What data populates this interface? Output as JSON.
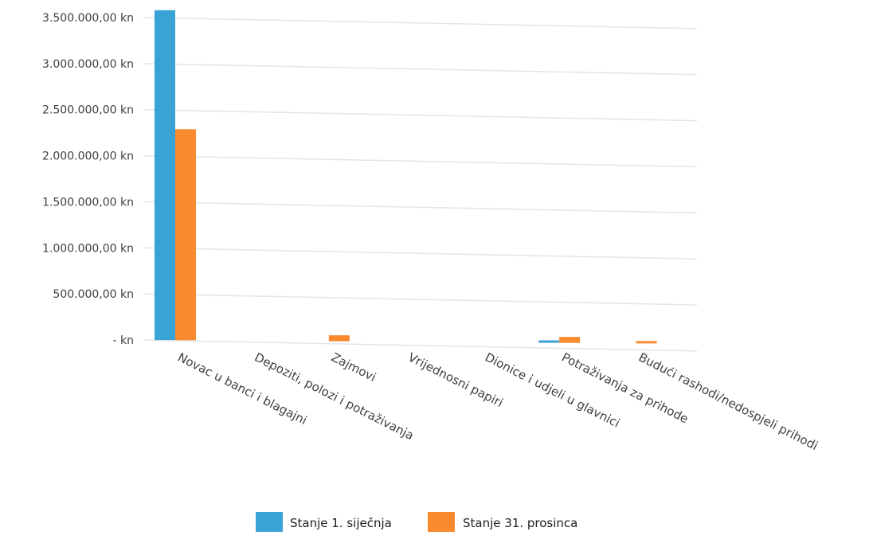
{
  "chart_data": {
    "type": "bar",
    "categories": [
      "Novac u banci i blagajni",
      "Depoziti, polozi i potraživanja",
      "Zajmovi",
      "Vrijednosni papiri",
      "Dionice i udjeli u glavnici",
      "Potraživanja za prihode",
      "Budući rashodi/nedospjeli prihodi"
    ],
    "series": [
      {
        "name": "Stanje 1. siječnja",
        "color": "#3aa3d6",
        "values": [
          3580000,
          0,
          0,
          0,
          0,
          20000,
          0
        ]
      },
      {
        "name": "Stanje 31. prosinca",
        "color": "#f98a2e",
        "values": [
          2290000,
          0,
          65000,
          0,
          0,
          65000,
          20000
        ]
      }
    ],
    "ylim": [
      0,
      3500000
    ],
    "y_ticks": [
      {
        "value": 3500000,
        "label": "3.500.000,00 kn"
      },
      {
        "value": 3000000,
        "label": "3.000.000,00 kn"
      },
      {
        "value": 2500000,
        "label": "2.500.000,00 kn"
      },
      {
        "value": 2000000,
        "label": "2.000.000,00 kn"
      },
      {
        "value": 1500000,
        "label": "1.500.000,00 kn"
      },
      {
        "value": 1000000,
        "label": "1.000.000,00 kn"
      },
      {
        "value": 500000,
        "label": "500.000,00 kn"
      },
      {
        "value": 0,
        "label": "-  kn"
      }
    ],
    "grid": true,
    "legend_position": "bottom",
    "gridline_color": "#dfe6ee"
  }
}
